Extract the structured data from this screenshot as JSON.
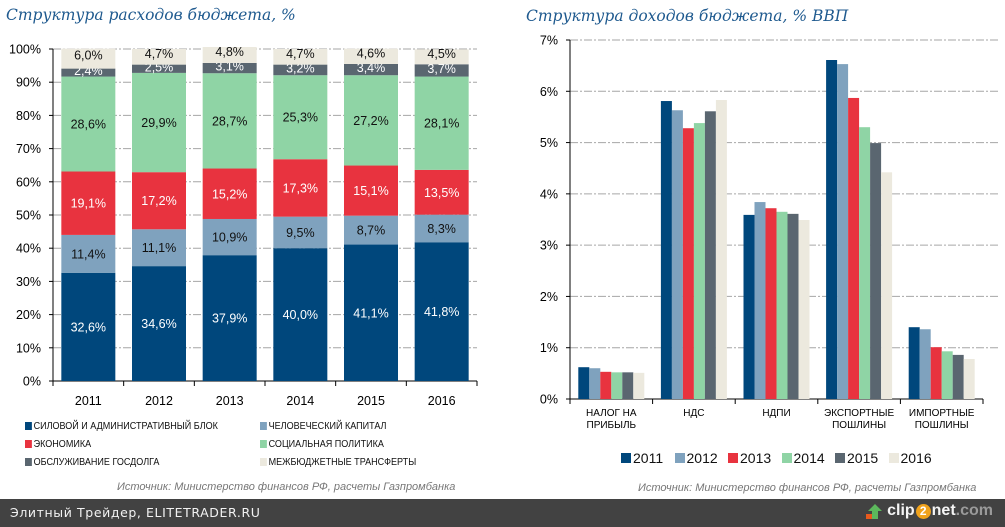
{
  "chart_data": [
    {
      "type": "bar",
      "stacked": true,
      "title": "Структура расходов бюджета, %",
      "xlabel": "",
      "ylabel": "",
      "ylim": [
        0,
        100
      ],
      "yticks": [
        "0%",
        "10%",
        "20%",
        "30%",
        "40%",
        "50%",
        "60%",
        "70%",
        "80%",
        "90%",
        "100%"
      ],
      "grid": true,
      "legend_position": "bottom",
      "categories": [
        "2011",
        "2012",
        "2013",
        "2014",
        "2015",
        "2016"
      ],
      "series": [
        {
          "name": "СИЛОВОЙ И АДМИНИСТРАТИВНЫЙ БЛОК",
          "color": "#00477c",
          "label_color": "#ffffff",
          "values": [
            32.6,
            34.6,
            37.9,
            40.0,
            41.1,
            41.8
          ],
          "labels": [
            "32,6%",
            "34,6%",
            "37,9%",
            "40,0%",
            "41,1%",
            "41,8%"
          ]
        },
        {
          "name": "ЧЕЛОВЕЧЕСКИЙ КАПИТАЛ",
          "color": "#7fa2be",
          "label_color": "#111111",
          "values": [
            11.4,
            11.1,
            10.9,
            9.5,
            8.7,
            8.3
          ],
          "labels": [
            "11,4%",
            "11,1%",
            "10,9%",
            "9,5%",
            "8,7%",
            "8,3%"
          ]
        },
        {
          "name": "ЭКОНОМИКА",
          "color": "#e8333f",
          "label_color": "#ffffff",
          "values": [
            19.1,
            17.2,
            15.2,
            17.3,
            15.1,
            13.5
          ],
          "labels": [
            "19,1%",
            "17,2%",
            "15,2%",
            "17,3%",
            "15,1%",
            "13,5%"
          ]
        },
        {
          "name": "СОЦИАЛЬНАЯ ПОЛИТИКА",
          "color": "#8fd4a5",
          "label_color": "#111111",
          "values": [
            28.6,
            29.9,
            28.7,
            25.3,
            27.2,
            28.1
          ],
          "labels": [
            "28,6%",
            "29,9%",
            "28,7%",
            "25,3%",
            "27,2%",
            "28,1%"
          ]
        },
        {
          "name": "ОБСЛУЖИВАНИЕ ГОСДОЛГА",
          "color": "#5a6670",
          "label_color": "#ffffff",
          "values": [
            2.4,
            2.5,
            3.1,
            3.2,
            3.4,
            3.7
          ],
          "labels": [
            "2,4%",
            "2,5%",
            "3,1%",
            "3,2%",
            "3,4%",
            "3,7%"
          ]
        },
        {
          "name": "МЕЖБЮДЖЕТНЫЕ ТРАНСФЕРТЫ",
          "color": "#ece9de",
          "label_color": "#111111",
          "values": [
            6.0,
            4.7,
            4.8,
            4.7,
            4.6,
            4.5
          ],
          "labels": [
            "6,0%",
            "4,7%",
            "4,8%",
            "4,7%",
            "4,6%",
            "4,5%"
          ]
        }
      ],
      "source": "Источник: Министерство финансов РФ, расчеты Газпромбанка"
    },
    {
      "type": "bar",
      "stacked": false,
      "title": "Структура доходов бюджета, % ВВП",
      "xlabel": "",
      "ylabel": "",
      "ylim": [
        0,
        7
      ],
      "yticks": [
        "0%",
        "1%",
        "2%",
        "3%",
        "4%",
        "5%",
        "6%",
        "7%"
      ],
      "grid": true,
      "legend_position": "bottom",
      "categories": [
        [
          "НАЛОГ НА",
          "ПРИБЫЛЬ"
        ],
        [
          "НДС"
        ],
        [
          "НДПИ"
        ],
        [
          "ЭКСПОРТНЫЕ",
          "ПОШЛИНЫ"
        ],
        [
          "ИМПОРТНЫЕ",
          "ПОШЛИНЫ"
        ]
      ],
      "series": [
        {
          "name": "2011",
          "color": "#00477c",
          "values": [
            0.62,
            5.81,
            3.59,
            6.61,
            1.4
          ]
        },
        {
          "name": "2012",
          "color": "#7fa2be",
          "values": [
            0.6,
            5.63,
            3.84,
            6.53,
            1.36
          ]
        },
        {
          "name": "2013",
          "color": "#e8333f",
          "values": [
            0.53,
            5.28,
            3.72,
            5.87,
            1.01
          ]
        },
        {
          "name": "2014",
          "color": "#8fd4a5",
          "values": [
            0.52,
            5.38,
            3.65,
            5.3,
            0.93
          ]
        },
        {
          "name": "2015",
          "color": "#5a6670",
          "values": [
            0.52,
            5.61,
            3.61,
            4.99,
            0.86
          ]
        },
        {
          "name": "2016",
          "color": "#ece9de",
          "values": [
            0.51,
            5.83,
            3.49,
            4.42,
            0.78
          ]
        }
      ],
      "source": "Источник: Министерство финансов РФ, расчеты Газпромбанка"
    }
  ],
  "footer": {
    "text": "Элитный Трейдер, ELITETRADER.RU",
    "brand_prefix": "clip",
    "brand_two": "2",
    "brand_mid": "net",
    "brand_suffix": ".com"
  }
}
